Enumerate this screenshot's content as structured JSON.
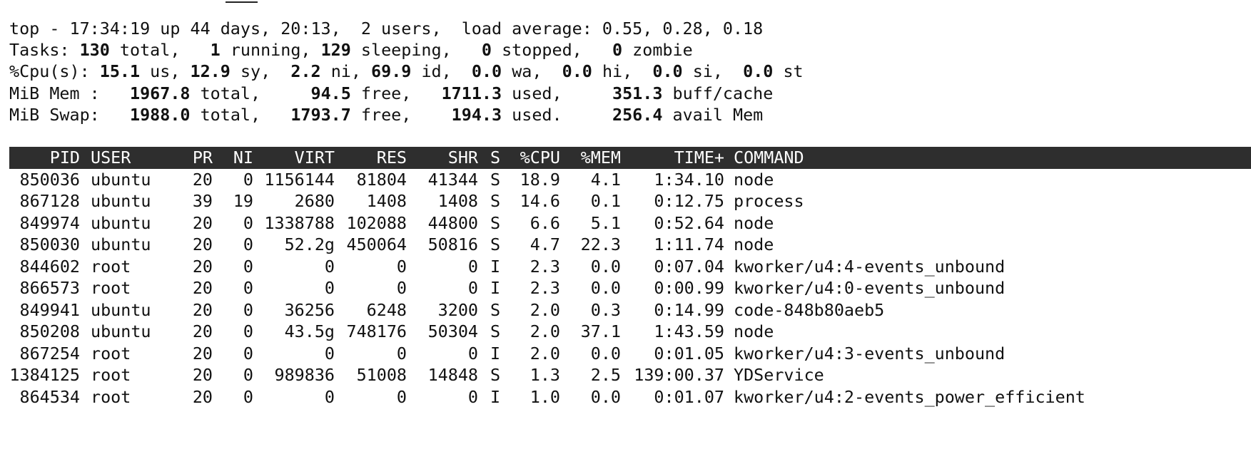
{
  "summary": [
    [
      "top - 17:34:19 up 44 days, 20:13,  2 users,  load average: 0.55, 0.28, 0.18"
    ],
    [
      "Tasks: ",
      "130",
      " total,   ",
      "1",
      " running, ",
      "129",
      " sleeping,   ",
      "0",
      " stopped,   ",
      "0",
      " zombie"
    ],
    [
      "%Cpu(s): ",
      "15.1",
      " us, ",
      "12.9",
      " sy,  ",
      "2.2",
      " ni, ",
      "69.9",
      " id,  ",
      "0.0",
      " wa,  ",
      "0.0",
      " hi,  ",
      "0.0",
      " si,  ",
      "0.0",
      " st"
    ],
    [
      "MiB Mem :   ",
      "1967.8",
      " total,     ",
      "94.5",
      " free,   ",
      "1711.3",
      " used,     ",
      "351.3",
      " buff/cache"
    ],
    [
      "MiB Swap:   ",
      "1988.0",
      " total,   ",
      "1793.7",
      " free,    ",
      "194.3",
      " used.     ",
      "256.4",
      " avail Mem"
    ]
  ],
  "table": {
    "header": [
      "PID",
      "USER",
      "PR",
      "NI",
      "VIRT",
      "RES",
      "SHR",
      "S",
      "%CPU",
      "%MEM",
      "TIME+",
      "COMMAND"
    ],
    "rows": [
      [
        "850036",
        "ubuntu",
        "20",
        "0",
        "1156144",
        "81804",
        "41344",
        "S",
        "18.9",
        "4.1",
        "1:34.10",
        "node"
      ],
      [
        "867128",
        "ubuntu",
        "39",
        "19",
        "2680",
        "1408",
        "1408",
        "S",
        "14.6",
        "0.1",
        "0:12.75",
        "process"
      ],
      [
        "849974",
        "ubuntu",
        "20",
        "0",
        "1338788",
        "102088",
        "44800",
        "S",
        "6.6",
        "5.1",
        "0:52.64",
        "node"
      ],
      [
        "850030",
        "ubuntu",
        "20",
        "0",
        "52.2g",
        "450064",
        "50816",
        "S",
        "4.7",
        "22.3",
        "1:11.74",
        "node"
      ],
      [
        "844602",
        "root",
        "20",
        "0",
        "0",
        "0",
        "0",
        "I",
        "2.3",
        "0.0",
        "0:07.04",
        "kworker/u4:4-events_unbound"
      ],
      [
        "866573",
        "root",
        "20",
        "0",
        "0",
        "0",
        "0",
        "I",
        "2.3",
        "0.0",
        "0:00.99",
        "kworker/u4:0-events_unbound"
      ],
      [
        "849941",
        "ubuntu",
        "20",
        "0",
        "36256",
        "6248",
        "3200",
        "S",
        "2.0",
        "0.3",
        "0:14.99",
        "code-848b80aeb5"
      ],
      [
        "850208",
        "ubuntu",
        "20",
        "0",
        "43.5g",
        "748176",
        "50304",
        "S",
        "2.0",
        "37.1",
        "1:43.59",
        "node"
      ],
      [
        "867254",
        "root",
        "20",
        "0",
        "0",
        "0",
        "0",
        "I",
        "2.0",
        "0.0",
        "0:01.05",
        "kworker/u4:3-events_unbound"
      ],
      [
        "1384125",
        "root",
        "20",
        "0",
        "989836",
        "51008",
        "14848",
        "S",
        "1.3",
        "2.5",
        "139:00.37",
        "YDService"
      ],
      [
        "864534",
        "root",
        "20",
        "0",
        "0",
        "0",
        "0",
        "I",
        "1.0",
        "0.0",
        "0:01.07",
        "kworker/u4:2-events_power_efficient"
      ]
    ]
  }
}
